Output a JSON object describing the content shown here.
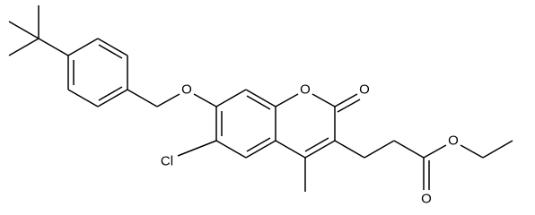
{
  "atoms": [
    "O",
    "O",
    "O",
    "Cl",
    "O",
    "O"
  ]
}
